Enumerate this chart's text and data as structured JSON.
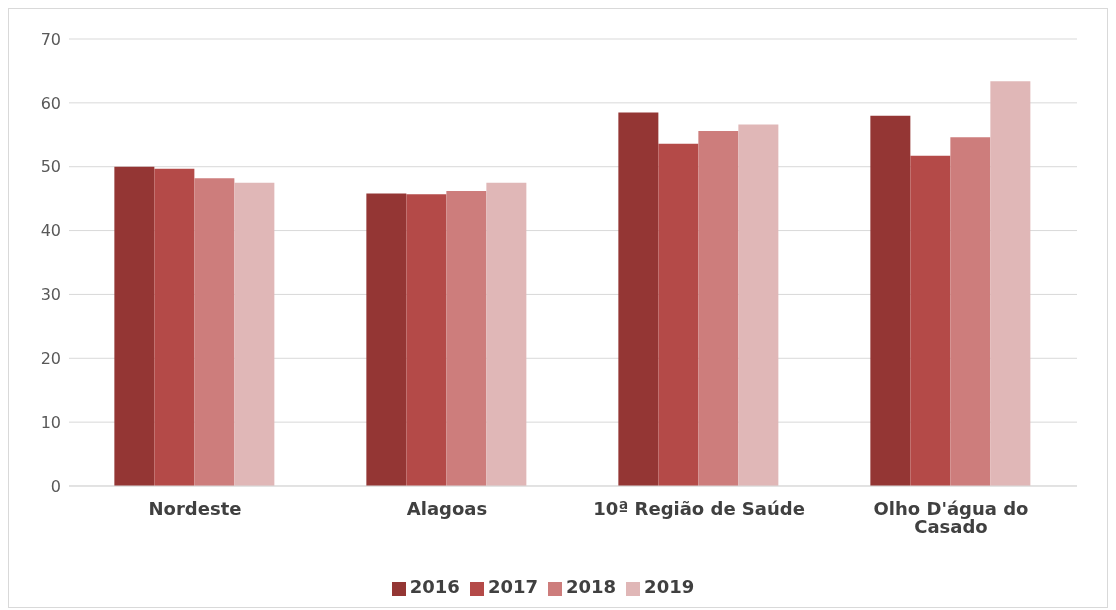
{
  "chart_data": {
    "type": "bar",
    "categories": [
      "Nordeste",
      "Alagoas",
      "10ª Região de Saúde",
      "Olho D'água do Casado"
    ],
    "series": [
      {
        "name": "2016",
        "color": "#943634",
        "values": [
          50.0,
          45.8,
          58.5,
          58.0
        ]
      },
      {
        "name": "2017",
        "color": "#b44a48",
        "values": [
          49.7,
          45.7,
          53.6,
          51.7
        ]
      },
      {
        "name": "2018",
        "color": "#cd7d7c",
        "values": [
          48.2,
          46.2,
          55.6,
          54.6
        ]
      },
      {
        "name": "2019",
        "color": "#e0b7b7",
        "values": [
          47.5,
          47.5,
          56.6,
          63.4
        ]
      }
    ],
    "ylim": [
      0,
      70
    ],
    "yticks": [
      0,
      10,
      20,
      30,
      40,
      50,
      60,
      70
    ],
    "grid": "y",
    "legend": "bottom"
  }
}
